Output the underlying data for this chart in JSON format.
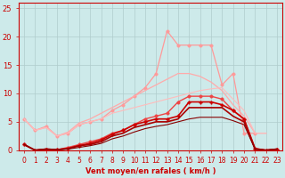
{
  "xlabel": "Vent moyen/en rafales ( km/h )",
  "background_color": "#cdeaea",
  "grid_color": "#b0cccc",
  "x": [
    0,
    1,
    2,
    3,
    4,
    5,
    6,
    7,
    8,
    9,
    10,
    11,
    12,
    13,
    14,
    15,
    16,
    17,
    18,
    19,
    20,
    21,
    22,
    23
  ],
  "lines": [
    {
      "y": [
        5.5,
        3.5,
        4.2,
        2.5,
        3.0,
        4.5,
        5.0,
        5.5,
        7.0,
        8.0,
        9.5,
        11.0,
        13.5,
        21.0,
        18.5,
        18.5,
        18.5,
        18.5,
        11.5,
        13.5,
        3.0,
        3.0,
        null,
        null
      ],
      "color": "#ff9999",
      "marker": "o",
      "linewidth": 0.9,
      "markersize": 2.5
    },
    {
      "y": [
        5.5,
        3.5,
        4.0,
        2.5,
        3.2,
        4.8,
        5.5,
        6.5,
        7.5,
        8.5,
        9.5,
        10.5,
        11.5,
        12.5,
        13.5,
        13.5,
        13.0,
        12.0,
        10.5,
        8.0,
        6.0,
        3.0,
        3.0,
        null
      ],
      "color": "#ffaaaa",
      "marker": null,
      "linewidth": 0.9,
      "markersize": 0
    },
    {
      "y": [
        5.5,
        3.5,
        4.0,
        2.5,
        3.0,
        4.5,
        5.0,
        5.5,
        6.5,
        7.0,
        7.5,
        8.0,
        8.5,
        9.0,
        9.5,
        10.0,
        10.5,
        10.8,
        11.0,
        9.0,
        7.0,
        3.0,
        3.0,
        null
      ],
      "color": "#ffbbbb",
      "marker": null,
      "linewidth": 0.8,
      "markersize": 0
    },
    {
      "y": [
        1.0,
        0.0,
        0.2,
        0.1,
        0.5,
        1.0,
        1.5,
        2.0,
        3.0,
        3.5,
        4.5,
        5.5,
        6.0,
        6.5,
        8.5,
        9.5,
        9.5,
        9.5,
        9.0,
        7.0,
        5.5,
        0.3,
        0.0,
        0.2
      ],
      "color": "#ee4444",
      "marker": "o",
      "linewidth": 1.0,
      "markersize": 2.5
    },
    {
      "y": [
        1.0,
        0.0,
        0.2,
        0.1,
        0.3,
        0.8,
        1.2,
        1.8,
        2.8,
        3.5,
        4.5,
        5.0,
        5.5,
        5.5,
        6.0,
        8.5,
        8.5,
        8.5,
        8.0,
        7.0,
        5.5,
        0.3,
        0.0,
        0.2
      ],
      "color": "#cc0000",
      "marker": "P",
      "linewidth": 1.2,
      "markersize": 2.5
    },
    {
      "y": [
        1.0,
        0.0,
        0.2,
        0.1,
        0.3,
        0.8,
        1.0,
        1.5,
        2.5,
        3.0,
        4.0,
        4.5,
        5.0,
        5.0,
        5.5,
        7.5,
        7.5,
        7.5,
        7.5,
        6.0,
        5.0,
        0.2,
        0.0,
        0.2
      ],
      "color": "#aa0000",
      "marker": null,
      "linewidth": 1.2,
      "markersize": 0
    },
    {
      "y": [
        1.0,
        0.0,
        0.2,
        0.1,
        0.2,
        0.5,
        0.8,
        1.2,
        2.0,
        2.5,
        3.2,
        3.8,
        4.2,
        4.5,
        5.0,
        5.5,
        5.8,
        5.8,
        5.8,
        5.2,
        4.5,
        0.2,
        0.0,
        0.2
      ],
      "color": "#880000",
      "marker": null,
      "linewidth": 0.8,
      "markersize": 0
    }
  ],
  "ylim": [
    0,
    26
  ],
  "xlim": [
    -0.5,
    23.5
  ],
  "yticks": [
    0,
    5,
    10,
    15,
    20,
    25
  ],
  "xticks": [
    0,
    1,
    2,
    3,
    4,
    5,
    6,
    7,
    8,
    9,
    10,
    11,
    12,
    13,
    14,
    15,
    16,
    17,
    18,
    19,
    20,
    21,
    22,
    23
  ]
}
